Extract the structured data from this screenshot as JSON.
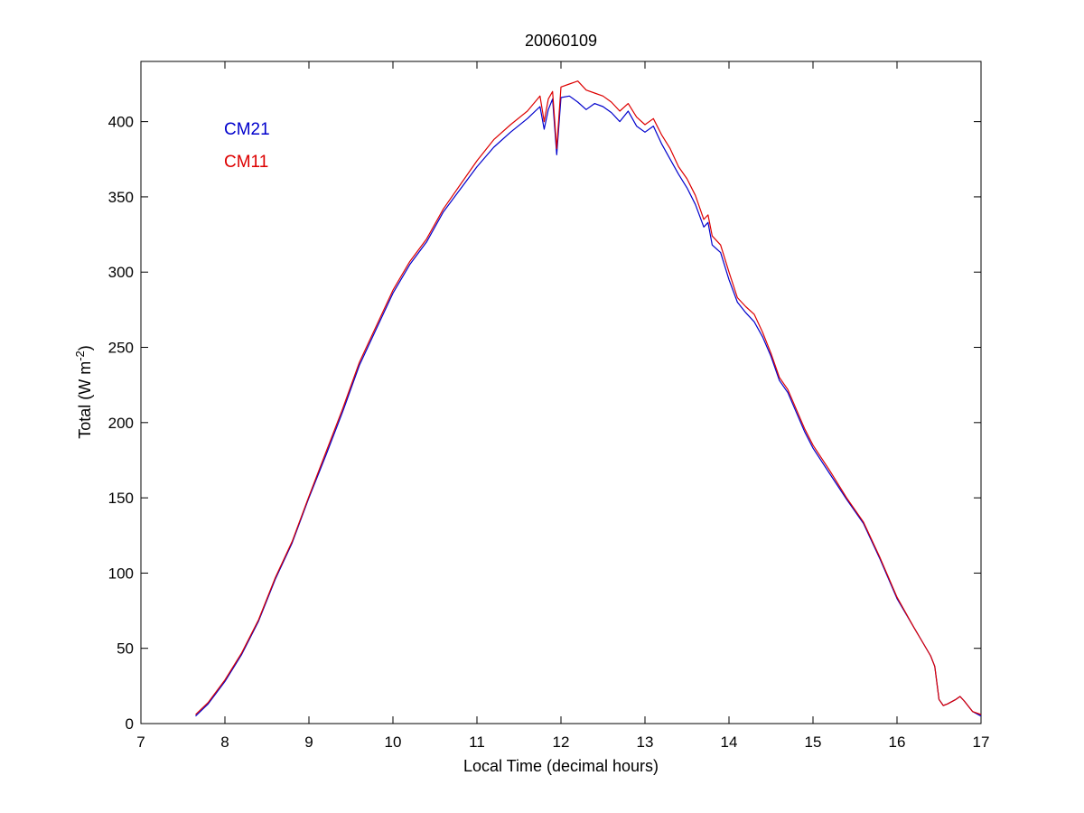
{
  "chart_data": {
    "type": "line",
    "title": "20060109",
    "xlabel": "Local Time (decimal hours)",
    "ylabel_main": "Total (W m",
    "ylabel_sup": "-2",
    "ylabel_close": ")",
    "xlim": [
      7,
      17
    ],
    "ylim": [
      0,
      440
    ],
    "xticks": [
      7,
      8,
      9,
      10,
      11,
      12,
      13,
      14,
      15,
      16,
      17
    ],
    "yticks": [
      0,
      50,
      100,
      150,
      200,
      250,
      300,
      350,
      400
    ],
    "grid": false,
    "legend_placement": "top-left",
    "series": [
      {
        "name": "CM21",
        "color": "#0000cc",
        "x": [
          7.65,
          7.8,
          8.0,
          8.2,
          8.4,
          8.6,
          8.8,
          9.0,
          9.2,
          9.4,
          9.6,
          9.8,
          10.0,
          10.2,
          10.4,
          10.6,
          10.8,
          11.0,
          11.2,
          11.4,
          11.6,
          11.75,
          11.8,
          11.85,
          11.9,
          11.95,
          12.0,
          12.1,
          12.2,
          12.3,
          12.4,
          12.5,
          12.6,
          12.7,
          12.8,
          12.9,
          13.0,
          13.1,
          13.2,
          13.3,
          13.4,
          13.5,
          13.6,
          13.7,
          13.75,
          13.8,
          13.9,
          14.0,
          14.1,
          14.2,
          14.3,
          14.4,
          14.5,
          14.6,
          14.7,
          14.8,
          14.9,
          15.0,
          15.2,
          15.4,
          15.6,
          15.8,
          16.0,
          16.2,
          16.4,
          16.45,
          16.5,
          16.55,
          16.6,
          16.7,
          16.75,
          16.8,
          16.9,
          17.0
        ],
        "y": [
          5,
          13,
          28,
          46,
          68,
          96,
          120,
          150,
          178,
          207,
          238,
          262,
          286,
          305,
          320,
          340,
          355,
          370,
          383,
          393,
          402,
          410,
          395,
          408,
          415,
          378,
          416,
          417,
          413,
          408,
          412,
          410,
          406,
          400,
          407,
          397,
          393,
          397,
          385,
          375,
          365,
          356,
          345,
          330,
          333,
          318,
          313,
          295,
          280,
          273,
          267,
          257,
          244,
          228,
          220,
          207,
          194,
          183,
          166,
          149,
          133,
          109,
          83,
          64,
          45,
          38,
          16,
          12,
          13,
          16,
          18,
          15,
          8,
          5
        ]
      },
      {
        "name": "CM11",
        "color": "#dd0000",
        "x": [
          7.65,
          7.8,
          8.0,
          8.2,
          8.4,
          8.6,
          8.8,
          9.0,
          9.2,
          9.4,
          9.6,
          9.8,
          10.0,
          10.2,
          10.4,
          10.6,
          10.8,
          11.0,
          11.2,
          11.4,
          11.6,
          11.75,
          11.8,
          11.85,
          11.9,
          11.95,
          12.0,
          12.1,
          12.2,
          12.3,
          12.4,
          12.5,
          12.6,
          12.7,
          12.8,
          12.9,
          13.0,
          13.1,
          13.2,
          13.3,
          13.4,
          13.5,
          13.6,
          13.7,
          13.75,
          13.8,
          13.9,
          14.0,
          14.1,
          14.2,
          14.3,
          14.4,
          14.5,
          14.6,
          14.7,
          14.8,
          14.9,
          15.0,
          15.2,
          15.4,
          15.6,
          15.8,
          16.0,
          16.2,
          16.4,
          16.45,
          16.5,
          16.55,
          16.6,
          16.7,
          16.75,
          16.8,
          16.9,
          17.0
        ],
        "y": [
          6,
          14,
          29,
          47,
          69,
          97,
          121,
          151,
          180,
          209,
          240,
          264,
          288,
          307,
          322,
          342,
          358,
          374,
          388,
          398,
          407,
          417,
          400,
          415,
          420,
          382,
          423,
          425,
          427,
          421,
          419,
          417,
          413,
          407,
          412,
          403,
          398,
          402,
          391,
          382,
          370,
          362,
          351,
          335,
          338,
          324,
          318,
          300,
          283,
          277,
          272,
          260,
          246,
          230,
          222,
          209,
          196,
          185,
          168,
          150,
          134,
          110,
          84,
          64,
          45,
          38,
          16,
          12,
          13,
          16,
          18,
          15,
          8,
          6
        ]
      }
    ]
  }
}
